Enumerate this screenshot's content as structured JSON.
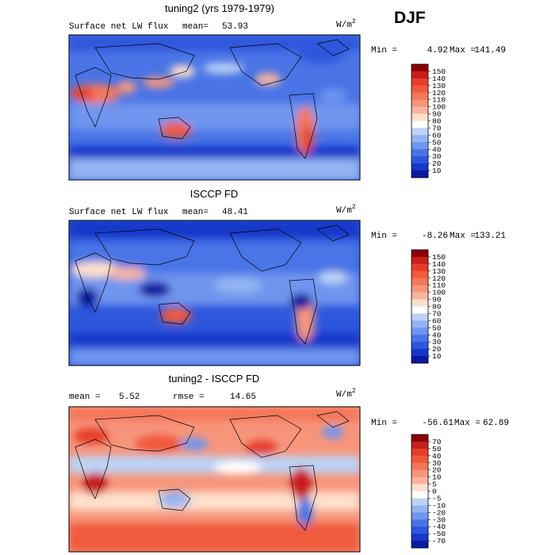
{
  "season": "DJF",
  "chart_data": [
    {
      "type": "heatmap",
      "title": "tuning2 (yrs 1979-1979)",
      "variable": "Surface net LW flux",
      "mean_label": "mean=",
      "mean_value": "53.93",
      "units": "W/m",
      "units_sup": "2",
      "min_label": "Min =",
      "min_value": "4.92",
      "max_label": "Max =",
      "max_value": "141.49",
      "colorbar_levels": [
        "150",
        "140",
        "130",
        "120",
        "110",
        "100",
        "90",
        "80",
        "70",
        "60",
        "50",
        "40",
        "30",
        "20",
        "10"
      ],
      "colorbar_colors": [
        "#8b0000",
        "#c81e1e",
        "#e63e2a",
        "#f05a3c",
        "#f4775a",
        "#f7957b",
        "#f9b59e",
        "#fde0cc",
        "#ffffff",
        "#bcd3f6",
        "#92b4f2",
        "#6f95ef",
        "#4a74e6",
        "#2d57dc",
        "#1538c9",
        "#0a1aa0"
      ]
    },
    {
      "type": "heatmap",
      "title": "ISCCP FD",
      "variable": "Surface net LW flux",
      "mean_label": "mean=",
      "mean_value": "48.41",
      "units": "W/m",
      "units_sup": "2",
      "min_label": "Min =",
      "min_value": "-8.26",
      "max_label": "Max =",
      "max_value": "133.21",
      "colorbar_levels": [
        "150",
        "140",
        "130",
        "120",
        "110",
        "100",
        "90",
        "80",
        "70",
        "60",
        "50",
        "40",
        "30",
        "20",
        "10"
      ],
      "colorbar_colors": [
        "#8b0000",
        "#c81e1e",
        "#e63e2a",
        "#f05a3c",
        "#f4775a",
        "#f7957b",
        "#f9b59e",
        "#fde0cc",
        "#ffffff",
        "#bcd3f6",
        "#92b4f2",
        "#6f95ef",
        "#4a74e6",
        "#2d57dc",
        "#1538c9",
        "#0a1aa0"
      ]
    },
    {
      "type": "heatmap",
      "title": "tuning2 - ISCCP FD",
      "mean_label": "mean =",
      "mean_value": "5.52",
      "rmse_label": "rmse =",
      "rmse_value": "14.65",
      "units": "W/m",
      "units_sup": "2",
      "min_label": "Min =",
      "min_value": "-56.61",
      "max_label": "Max =",
      "max_value": "62.89",
      "colorbar_levels": [
        "70",
        "50",
        "40",
        "30",
        "20",
        "10",
        "5",
        "0",
        "-5",
        "-10",
        "-20",
        "-30",
        "-40",
        "-50",
        "-70"
      ],
      "colorbar_colors": [
        "#8b0000",
        "#c81e1e",
        "#e63e2a",
        "#f05a3c",
        "#f4775a",
        "#f7957b",
        "#f9b59e",
        "#fde0cc",
        "#ffffff",
        "#bcd3f6",
        "#92b4f2",
        "#6f95ef",
        "#4a74e6",
        "#2d57dc",
        "#1538c9",
        "#0a1aa0"
      ]
    }
  ]
}
